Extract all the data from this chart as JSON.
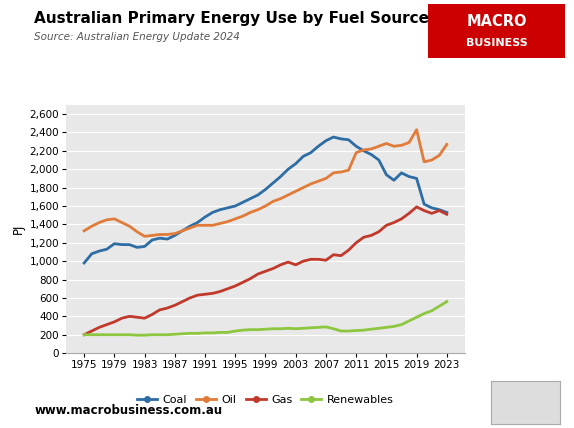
{
  "title": "Australian Primary Energy Use by Fuel Source",
  "source": "Source: Australian Energy Update 2024",
  "ylabel": "PJ",
  "website": "www.macrobusiness.com.au",
  "background_color": "#e8e8e8",
  "years": [
    1975,
    1976,
    1977,
    1978,
    1979,
    1980,
    1981,
    1982,
    1983,
    1984,
    1985,
    1986,
    1987,
    1988,
    1989,
    1990,
    1991,
    1992,
    1993,
    1994,
    1995,
    1996,
    1997,
    1998,
    1999,
    2000,
    2001,
    2002,
    2003,
    2004,
    2005,
    2006,
    2007,
    2008,
    2009,
    2010,
    2011,
    2012,
    2013,
    2014,
    2015,
    2016,
    2017,
    2018,
    2019,
    2020,
    2021,
    2022,
    2023
  ],
  "coal": [
    980,
    1080,
    1110,
    1130,
    1190,
    1180,
    1180,
    1150,
    1160,
    1230,
    1250,
    1240,
    1280,
    1330,
    1380,
    1420,
    1480,
    1530,
    1560,
    1580,
    1600,
    1640,
    1680,
    1720,
    1780,
    1850,
    1920,
    2000,
    2060,
    2140,
    2180,
    2250,
    2310,
    2350,
    2330,
    2320,
    2250,
    2200,
    2160,
    2100,
    1940,
    1880,
    1960,
    1920,
    1900,
    1620,
    1580,
    1560,
    1530
  ],
  "oil": [
    1330,
    1380,
    1420,
    1450,
    1460,
    1420,
    1380,
    1320,
    1270,
    1280,
    1290,
    1290,
    1300,
    1330,
    1360,
    1390,
    1390,
    1390,
    1410,
    1430,
    1460,
    1490,
    1530,
    1560,
    1600,
    1650,
    1680,
    1720,
    1760,
    1800,
    1840,
    1870,
    1900,
    1960,
    1970,
    1990,
    2180,
    2210,
    2220,
    2250,
    2280,
    2250,
    2260,
    2290,
    2430,
    2080,
    2100,
    2150,
    2270
  ],
  "gas": [
    200,
    240,
    280,
    310,
    340,
    380,
    400,
    390,
    380,
    420,
    470,
    490,
    520,
    560,
    600,
    630,
    640,
    650,
    670,
    700,
    730,
    770,
    810,
    860,
    890,
    920,
    960,
    990,
    960,
    1000,
    1020,
    1020,
    1010,
    1070,
    1060,
    1120,
    1200,
    1260,
    1280,
    1320,
    1390,
    1420,
    1460,
    1520,
    1590,
    1550,
    1520,
    1550,
    1510
  ],
  "renewables": [
    200,
    200,
    200,
    200,
    200,
    200,
    200,
    195,
    195,
    200,
    200,
    200,
    205,
    210,
    215,
    215,
    220,
    220,
    225,
    225,
    240,
    250,
    255,
    255,
    260,
    265,
    265,
    270,
    265,
    270,
    275,
    280,
    285,
    265,
    240,
    240,
    245,
    250,
    260,
    270,
    280,
    290,
    310,
    350,
    390,
    430,
    460,
    510,
    560
  ],
  "coal_color": "#2e6da4",
  "oil_color": "#e07b39",
  "gas_color": "#c0392b",
  "renewables_color": "#8dc63f",
  "ylim": [
    0,
    2700
  ],
  "yticks": [
    0,
    200,
    400,
    600,
    800,
    1000,
    1200,
    1400,
    1600,
    1800,
    2000,
    2200,
    2400,
    2600
  ],
  "xticks": [
    1975,
    1979,
    1983,
    1987,
    1991,
    1995,
    1999,
    2003,
    2007,
    2011,
    2015,
    2019,
    2023
  ],
  "macro_red": "#cc0000",
  "line_width": 2.0
}
